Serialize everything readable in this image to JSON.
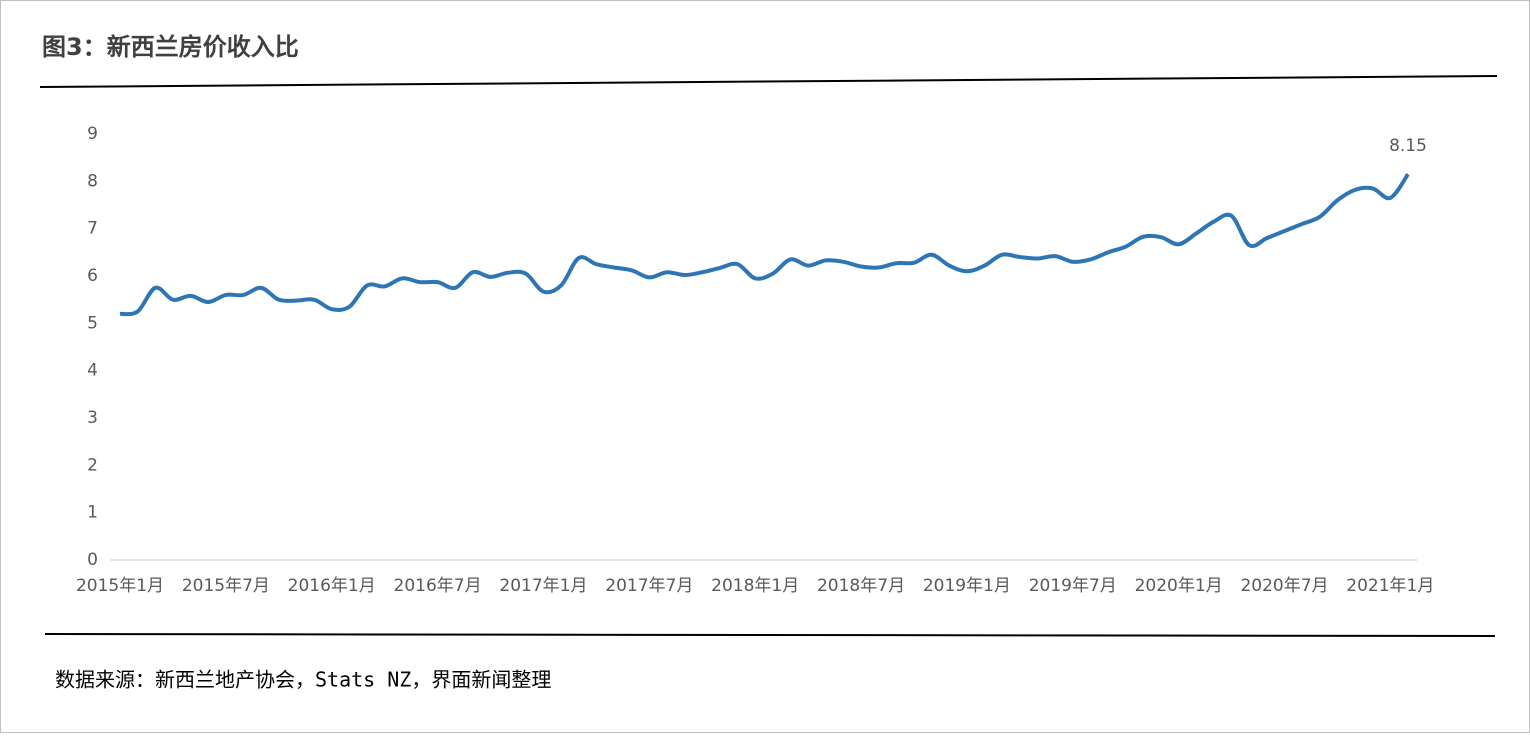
{
  "chart_data": {
    "type": "line",
    "title": "图3：新西兰房价收入比",
    "source": "数据来源：新西兰地产协会，Stats NZ，界面新闻整理",
    "categories": [
      "2015年1月",
      null,
      null,
      null,
      null,
      null,
      "2015年7月",
      null,
      null,
      null,
      null,
      null,
      "2016年1月",
      null,
      null,
      null,
      null,
      null,
      "2016年7月",
      null,
      null,
      null,
      null,
      null,
      "2017年1月",
      null,
      null,
      null,
      null,
      null,
      "2017年7月",
      null,
      null,
      null,
      null,
      null,
      "2018年1月",
      null,
      null,
      null,
      null,
      null,
      "2018年7月",
      null,
      null,
      null,
      null,
      null,
      "2019年1月",
      null,
      null,
      null,
      null,
      null,
      "2019年7月",
      null,
      null,
      null,
      null,
      null,
      "2020年1月",
      null,
      null,
      null,
      null,
      null,
      "2020年7月",
      null,
      null,
      null,
      null,
      null,
      "2021年1月",
      null
    ],
    "series": [
      {
        "name": "房价收入比",
        "color": "#2e75b6",
        "values": [
          5.2,
          5.25,
          5.75,
          5.5,
          5.58,
          5.45,
          5.6,
          5.6,
          5.75,
          5.5,
          5.48,
          5.5,
          5.3,
          5.35,
          5.8,
          5.78,
          5.95,
          5.87,
          5.87,
          5.75,
          6.08,
          5.98,
          6.07,
          6.05,
          5.67,
          5.8,
          6.38,
          6.25,
          6.18,
          6.12,
          5.97,
          6.08,
          6.02,
          6.08,
          6.17,
          6.25,
          5.95,
          6.05,
          6.35,
          6.22,
          6.33,
          6.3,
          6.2,
          6.18,
          6.27,
          6.28,
          6.45,
          6.22,
          6.1,
          6.22,
          6.45,
          6.4,
          6.37,
          6.42,
          6.3,
          6.35,
          6.5,
          6.62,
          6.83,
          6.82,
          6.67,
          6.9,
          7.15,
          7.27,
          6.65,
          6.8,
          6.95,
          7.1,
          7.25,
          7.6,
          7.82,
          7.85,
          7.65,
          8.15
        ]
      }
    ],
    "labeled_point": 73,
    "ylim": [
      0,
      9
    ],
    "yticks": [
      0,
      1,
      2,
      3,
      4,
      5,
      6,
      7,
      8,
      9
    ],
    "grid": false
  }
}
